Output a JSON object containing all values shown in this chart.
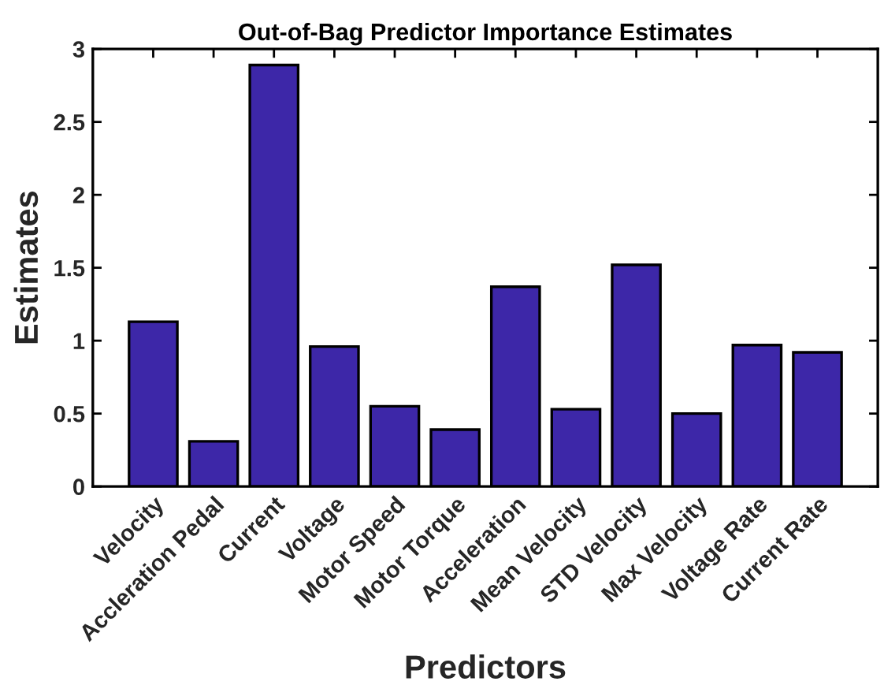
{
  "chart_data": {
    "type": "bar",
    "title": "Out-of-Bag Predictor Importance Estimates",
    "xlabel": "Predictors",
    "ylabel": "Estimates",
    "categories": [
      "Velocity",
      "Accleration Pedal",
      "Current",
      "Voltage",
      "Motor Speed",
      "Motor Torque",
      "Acceleration",
      "Mean Velocity",
      "STD Velocity",
      "Max Velocity",
      "Voltage Rate",
      "Current Rate"
    ],
    "values": [
      1.13,
      0.31,
      2.89,
      0.96,
      0.55,
      0.39,
      1.37,
      0.53,
      1.52,
      0.5,
      0.97,
      0.92
    ],
    "color": "#3d27a8",
    "ylim": [
      0,
      3
    ],
    "yticks": [
      0,
      0.5,
      1,
      1.5,
      2,
      2.5,
      3
    ],
    "grid": false,
    "legend": false
  }
}
